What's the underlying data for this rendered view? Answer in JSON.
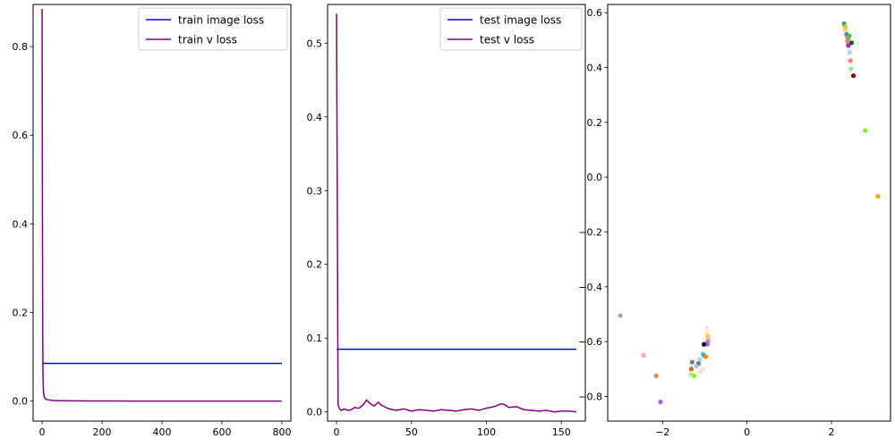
{
  "colors": {
    "image_loss": "#0000ff",
    "v_loss": "#800080",
    "axes": "#000000",
    "background": "#ffffff",
    "legend_border": "#cccccc"
  },
  "chart_data": [
    {
      "type": "line",
      "title": "",
      "xlabel": "",
      "ylabel": "",
      "xlim": [
        -30,
        830
      ],
      "ylim": [
        -0.045,
        0.895
      ],
      "xticks": [
        0,
        200,
        400,
        600,
        800
      ],
      "yticks": [
        0.0,
        0.2,
        0.4,
        0.6,
        0.8
      ],
      "xtick_labels": [
        "0",
        "200",
        "400",
        "600",
        "800"
      ],
      "ytick_labels": [
        "0.0",
        "0.2",
        "0.4",
        "0.6",
        "0.8"
      ],
      "legend_position": "top-right",
      "grid": false,
      "series": [
        {
          "name": "train image loss",
          "color": "#0000ff",
          "x": [
            0,
            800
          ],
          "y": [
            0.085,
            0.085
          ]
        },
        {
          "name": "train v loss",
          "color": "#800080",
          "x": [
            0,
            1,
            2,
            3,
            4,
            5,
            6,
            8,
            10,
            14,
            20,
            30,
            40,
            60,
            80,
            100,
            150,
            200,
            300,
            400,
            500,
            600,
            700,
            800
          ],
          "y": [
            0.885,
            0.5,
            0.15,
            0.06,
            0.03,
            0.018,
            0.012,
            0.008,
            0.006,
            0.004,
            0.003,
            0.002,
            0.0015,
            0.001,
            0.0008,
            0.0006,
            0.0004,
            0.0003,
            0.0002,
            0.0002,
            0.0002,
            0.0001,
            0.0001,
            0.0001
          ]
        }
      ]
    },
    {
      "type": "line",
      "title": "",
      "xlabel": "",
      "ylabel": "",
      "xlim": [
        -6,
        166
      ],
      "ylim": [
        -0.0125,
        0.5525
      ],
      "xticks": [
        0,
        50,
        100,
        150
      ],
      "yticks": [
        0.0,
        0.1,
        0.2,
        0.3,
        0.4,
        0.5
      ],
      "xtick_labels": [
        "0",
        "50",
        "100",
        "150"
      ],
      "ytick_labels": [
        "0.0",
        "0.1",
        "0.2",
        "0.3",
        "0.4",
        "0.5"
      ],
      "legend_position": "top-right",
      "grid": false,
      "series": [
        {
          "name": "test image loss",
          "color": "#0000ff",
          "x": [
            0,
            160
          ],
          "y": [
            0.085,
            0.085
          ]
        },
        {
          "name": "test v loss",
          "color": "#800080",
          "x": [
            0,
            1,
            2,
            3,
            5,
            8,
            10,
            12,
            15,
            18,
            20,
            22,
            25,
            28,
            30,
            35,
            40,
            45,
            50,
            55,
            60,
            65,
            70,
            75,
            80,
            85,
            90,
            95,
            100,
            105,
            110,
            112,
            115,
            120,
            125,
            130,
            135,
            140,
            145,
            150,
            155,
            160
          ],
          "y": [
            0.54,
            0.01,
            0.004,
            0.002,
            0.004,
            0.002,
            0.003,
            0.006,
            0.005,
            0.01,
            0.016,
            0.012,
            0.008,
            0.013,
            0.009,
            0.004,
            0.002,
            0.004,
            0.001,
            0.003,
            0.002,
            0.001,
            0.003,
            0.002,
            0.001,
            0.003,
            0.004,
            0.002,
            0.005,
            0.007,
            0.011,
            0.01,
            0.006,
            0.007,
            0.003,
            0.002,
            0.001,
            0.002,
            0.0,
            0.001,
            0.001,
            0.0
          ]
        }
      ]
    },
    {
      "type": "scatter",
      "title": "",
      "xlabel": "",
      "ylabel": "",
      "xlim": [
        -3.3,
        3.4
      ],
      "ylim": [
        -0.89,
        0.63
      ],
      "xticks": [
        -2,
        0,
        2
      ],
      "yticks": [
        -0.8,
        -0.6,
        -0.4,
        -0.2,
        0.0,
        0.2,
        0.4,
        0.6
      ],
      "xtick_labels": [
        "−2",
        "0",
        "2"
      ],
      "ytick_labels": [
        "−0.8",
        "−0.6",
        "−0.4",
        "−0.2",
        "0.0",
        "0.2",
        "0.4",
        "0.6"
      ],
      "grid": false,
      "points": [
        {
          "x": 2.3,
          "y": 0.56,
          "color": "#708090"
        },
        {
          "x": 2.32,
          "y": 0.55,
          "color": "#9acd32"
        },
        {
          "x": 2.33,
          "y": 0.54,
          "color": "#ffd700"
        },
        {
          "x": 2.35,
          "y": 0.53,
          "color": "#d3d3d3"
        },
        {
          "x": 2.36,
          "y": 0.52,
          "color": "#4682b4"
        },
        {
          "x": 2.38,
          "y": 0.51,
          "color": "#ff8c00"
        },
        {
          "x": 2.4,
          "y": 0.5,
          "color": "#da70d6"
        },
        {
          "x": 2.42,
          "y": 0.515,
          "color": "#32cd32"
        },
        {
          "x": 2.38,
          "y": 0.495,
          "color": "#f08080"
        },
        {
          "x": 2.4,
          "y": 0.48,
          "color": "#9932cc"
        },
        {
          "x": 2.48,
          "y": 0.49,
          "color": "#006400"
        },
        {
          "x": 2.43,
          "y": 0.455,
          "color": "#add8e6"
        },
        {
          "x": 2.45,
          "y": 0.425,
          "color": "#fa8072"
        },
        {
          "x": 2.46,
          "y": 0.395,
          "color": "#90ee90"
        },
        {
          "x": 2.52,
          "y": 0.37,
          "color": "#8b0000"
        },
        {
          "x": 2.8,
          "y": 0.17,
          "color": "#7cfc00"
        },
        {
          "x": 3.1,
          "y": -0.07,
          "color": "#ffa500"
        },
        {
          "x": -3.0,
          "y": -0.505,
          "color": "#a9a9a9"
        },
        {
          "x": -2.45,
          "y": -0.65,
          "color": "#ff9ecf"
        },
        {
          "x": -2.15,
          "y": -0.725,
          "color": "#ff7f50"
        },
        {
          "x": -2.05,
          "y": -0.82,
          "color": "#ba55d3"
        },
        {
          "x": -0.95,
          "y": -0.55,
          "color": "#e6e6fa"
        },
        {
          "x": -0.93,
          "y": -0.56,
          "color": "#f5f5f5"
        },
        {
          "x": -0.94,
          "y": -0.57,
          "color": "#ffe4b5"
        },
        {
          "x": -0.93,
          "y": -0.58,
          "color": "#ffd700"
        },
        {
          "x": -0.92,
          "y": -0.59,
          "color": "#d8bfd8"
        },
        {
          "x": -0.93,
          "y": -0.6,
          "color": "#ff69b4"
        },
        {
          "x": -0.94,
          "y": -0.61,
          "color": "#9370db"
        },
        {
          "x": -1.02,
          "y": -0.61,
          "color": "#000000"
        },
        {
          "x": -1.05,
          "y": -0.645,
          "color": "#87ceeb"
        },
        {
          "x": -1.02,
          "y": -0.65,
          "color": "#20b2aa"
        },
        {
          "x": -0.98,
          "y": -0.655,
          "color": "#ff8c00"
        },
        {
          "x": -1.12,
          "y": -0.665,
          "color": "#add8e6"
        },
        {
          "x": -1.3,
          "y": -0.675,
          "color": "#708090"
        },
        {
          "x": -1.15,
          "y": -0.68,
          "color": "#4682b4"
        },
        {
          "x": -1.2,
          "y": -0.69,
          "color": "#c0c0c0"
        },
        {
          "x": -1.03,
          "y": -0.7,
          "color": "#ffe4e1"
        },
        {
          "x": -1.32,
          "y": -0.7,
          "color": "#d2691e"
        },
        {
          "x": -1.1,
          "y": -0.71,
          "color": "#ffdab9"
        },
        {
          "x": -1.33,
          "y": -0.72,
          "color": "#98fb98"
        },
        {
          "x": -1.25,
          "y": -0.725,
          "color": "#7cfc00"
        }
      ]
    }
  ]
}
